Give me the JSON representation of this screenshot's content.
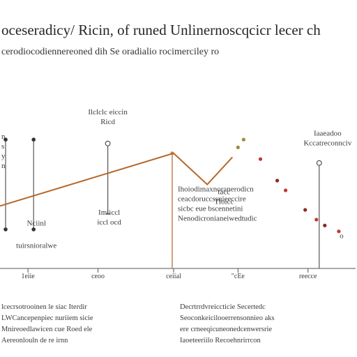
{
  "page": {
    "title": "oceseradicy/ Ricin, of runed Unlinernoscqcicr lecer ch",
    "subtitle": "cerodiocodiennereoned dih Se oradialio rocimerciley ro"
  },
  "chart_data": {
    "type": "line",
    "title": "oceseradicy/ Ricin, of runed Unlinernoscqcicr lecer ch",
    "subtitle": "cerodiocodiennereoned dih Se oradialio rocimerciley ro",
    "xlabel": "",
    "ylabel": "",
    "grid": false,
    "legend": "none",
    "x_ticks": [
      {
        "x": 1.0,
        "label": "1eiie"
      },
      {
        "x": 3.5,
        "label": "ceoo"
      },
      {
        "x": 6.2,
        "label": "ceiial"
      },
      {
        "x": 8.5,
        "label": "\"cEe"
      },
      {
        "x": 11.0,
        "label": "reecce"
      }
    ],
    "xlim": [
      0,
      12.7
    ],
    "ylim": [
      0,
      10
    ],
    "series": [
      {
        "color": "#b5682c",
        "x": [
          0,
          6.2,
          7.4,
          8.3
        ],
        "y": [
          3.2,
          5.9,
          4.3,
          5.7
        ]
      },
      {
        "color": "#c0392b",
        "markers_only": true,
        "x": [
          8.5,
          8.7,
          9.3,
          9.9,
          10.2,
          10.9,
          11.3,
          11.6,
          12.1
        ],
        "y": [
          6.2,
          6.6,
          5.6,
          4.5,
          4.0,
          3.0,
          2.5,
          2.2,
          1.9
        ]
      }
    ],
    "vertical_markers": [
      {
        "x": 0.2,
        "top": 6.6,
        "bottom": 2.0,
        "style": "dot"
      },
      {
        "x": 1.2,
        "top": 6.6,
        "bottom": 2.0,
        "style": "dot"
      },
      {
        "x": 3.85,
        "top": 6.4,
        "bottom": 2.8,
        "style": "ring"
      },
      {
        "x": 6.15,
        "top": 5.9,
        "bottom": 0,
        "style": "filled"
      },
      {
        "x": 11.4,
        "top": 5.4,
        "bottom": 0,
        "style": "ring"
      }
    ],
    "annotations": [
      {
        "x": 3.85,
        "y": 7.9,
        "lines": [
          "Ilclclc eiccin",
          "Ricd"
        ]
      },
      {
        "x": 0.05,
        "y": 6.65,
        "lines": [
          "n",
          "s",
          "y",
          "n"
        ]
      },
      {
        "x": 1.3,
        "y": 2.2,
        "lines": [
          "Nciinl"
        ]
      },
      {
        "x": 1.3,
        "y": 1.05,
        "lines": [
          "tuirsnioralwe"
        ]
      },
      {
        "x": 3.9,
        "y": 2.75,
        "lines": [
          "Imiiccl",
          "iccl ocd"
        ]
      },
      {
        "x": 8.0,
        "y": 3.8,
        "lines": [
          "tacc",
          "Tloicc"
        ]
      },
      {
        "x": 11.7,
        "y": 6.8,
        "lines": [
          "Iaaeadoo",
          "Kccatreconnciv"
        ]
      },
      {
        "x": 12.2,
        "y": 1.55,
        "lines": [
          "o"
        ]
      }
    ],
    "note_block": {
      "x": 6.35,
      "y": 3.95,
      "lines": [
        "Ihoiodimaxnoranerodicn",
        "ceacdoruccssnieeccire",
        "sicbc eue bscennetini",
        "Nenodicronianeiwedtudic"
      ]
    }
  },
  "footer": {
    "left_lines": [
      "lcecrsotrooinen le siac Iterdir",
      "LWCancepenpiec nuriiem sicie",
      "Mnireoedlawicen cue Roed ele",
      "Aereonlouln de re irnn"
    ],
    "right_lines": [
      "Decrtrrdvreiccticie Secertedc",
      "Seoconkeicilooerrensonnieo aks",
      "ere crneeqicuneonedcenwersrie",
      "Iaoeteeriilo Recoehnrirrcon"
    ]
  }
}
